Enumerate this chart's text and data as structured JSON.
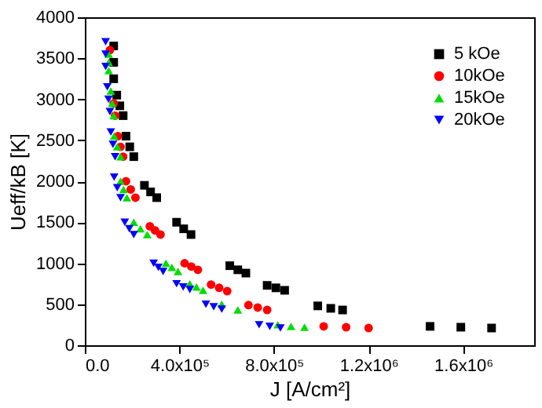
{
  "chart_data": {
    "type": "scatter",
    "xlabel": "J [A/cm²]",
    "ylabel": "Ueff/kB [K]",
    "xlim": [
      0,
      1900000
    ],
    "ylim": [
      0,
      4000
    ],
    "xticks": [
      {
        "value": 0,
        "label": "0.0"
      },
      {
        "value": 400000,
        "label": "4.0x10⁵"
      },
      {
        "value": 800000,
        "label": "8.0x10⁵"
      },
      {
        "value": 1200000,
        "label": "1.2x10⁶"
      },
      {
        "value": 1600000,
        "label": "1.6x10⁶"
      }
    ],
    "yticks": [
      0,
      500,
      1000,
      1500,
      2000,
      2500,
      3000,
      3500,
      4000
    ],
    "grid": false,
    "legend": "top right",
    "series": [
      {
        "name": "5 kOe",
        "color": "#000000",
        "marker": "square",
        "x": [
          122000,
          122000,
          122000,
          135000,
          148000,
          162000,
          174000,
          190000,
          207000,
          252000,
          278000,
          304000,
          388000,
          418000,
          449000,
          613000,
          647000,
          681000,
          771000,
          808000,
          845000,
          985000,
          1040000,
          1090000,
          1460000,
          1590000,
          1720000
        ],
        "values": [
          3650,
          3450,
          3250,
          3050,
          2920,
          2800,
          2550,
          2420,
          2300,
          1950,
          1870,
          1800,
          1500,
          1420,
          1350,
          970,
          920,
          880,
          730,
          700,
          670,
          480,
          450,
          430,
          230,
          220,
          210
        ]
      },
      {
        "name": "10kOe",
        "color": "#ff0000",
        "marker": "circle",
        "x": [
          106000,
          122000,
          128000,
          140000,
          151000,
          162000,
          174000,
          194000,
          214000,
          275000,
          297000,
          320000,
          422000,
          450000,
          478000,
          534000,
          568000,
          602000,
          692000,
          731000,
          771000,
          1010000,
          1105000,
          1200000
        ],
        "values": [
          3600,
          2950,
          2800,
          2550,
          2420,
          2300,
          2000,
          1900,
          1800,
          1450,
          1400,
          1350,
          1000,
          960,
          920,
          740,
          700,
          660,
          490,
          460,
          430,
          230,
          220,
          210
        ]
      },
      {
        "name": "15kOe",
        "color": "#00dd00",
        "marker": "triangle",
        "x": [
          101000,
          101000,
          101000,
          110000,
          116000,
          122000,
          124000,
          137000,
          151000,
          151000,
          164000,
          178000,
          207000,
          235000,
          264000,
          343000,
          368000,
          394000,
          444000,
          472000,
          500000,
          579000,
          647000,
          816000,
          872000,
          929000
        ],
        "values": [
          3550,
          3450,
          3350,
          3100,
          2950,
          2800,
          2550,
          2420,
          2300,
          2000,
          1900,
          1800,
          1500,
          1420,
          1350,
          1000,
          950,
          900,
          750,
          710,
          670,
          500,
          430,
          250,
          230,
          220
        ]
      },
      {
        "name": "20kOe",
        "color": "#0000ff",
        "marker": "triangle-down",
        "x": [
          88000,
          88000,
          88000,
          95000,
          100000,
          106000,
          110000,
          119000,
          128000,
          124000,
          137000,
          151000,
          169000,
          188000,
          207000,
          291000,
          311000,
          331000,
          388000,
          416000,
          444000,
          512000,
          545000,
          579000,
          737000,
          782000,
          827000
        ],
        "values": [
          3700,
          3550,
          3400,
          3150,
          3000,
          2850,
          2600,
          2450,
          2300,
          2050,
          1920,
          1800,
          1500,
          1420,
          1350,
          1000,
          950,
          900,
          750,
          710,
          680,
          500,
          470,
          440,
          250,
          230,
          210
        ]
      }
    ]
  }
}
